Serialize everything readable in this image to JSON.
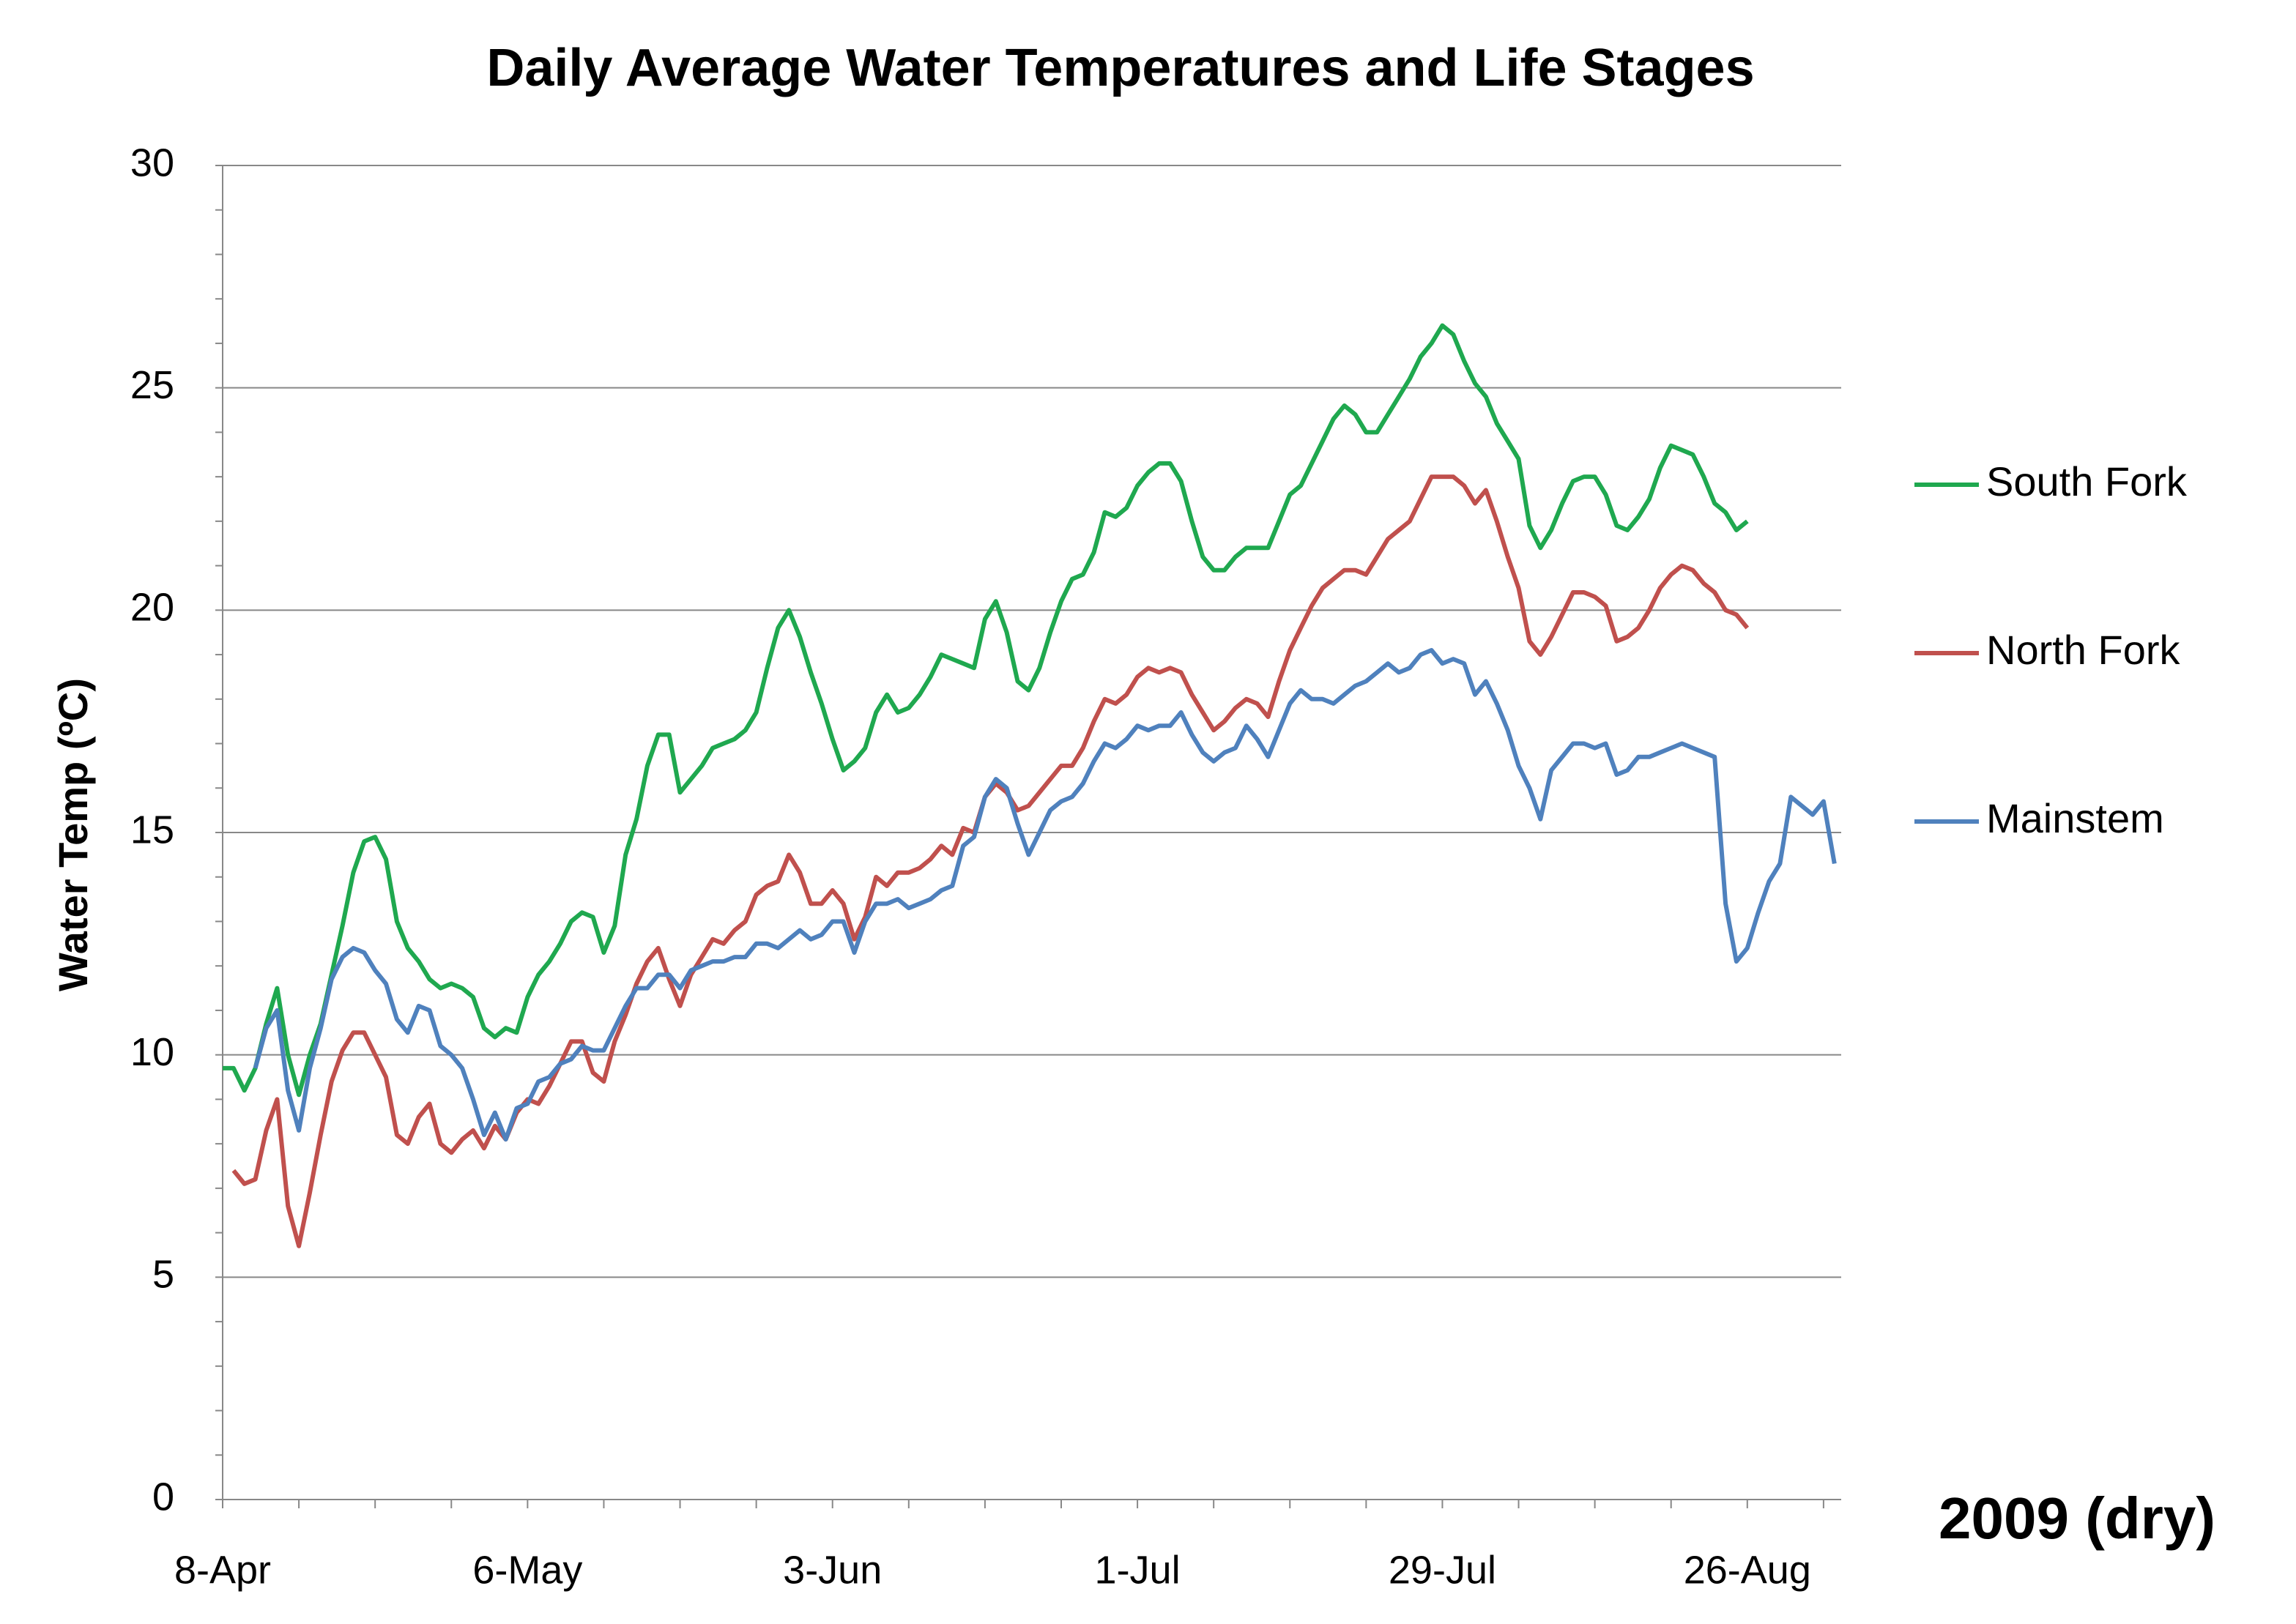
{
  "chart_data": {
    "type": "line",
    "title": "Daily Average Water Temperatures and Life Stages",
    "ylabel": "Water Temp (ºC)",
    "annotation": "2009 (dry)",
    "categories": [
      "8-Apr",
      null,
      null,
      null,
      null,
      null,
      null,
      null,
      null,
      null,
      null,
      null,
      null,
      null,
      null,
      null,
      null,
      null,
      null,
      null,
      null,
      null,
      null,
      null,
      null,
      null,
      null,
      null,
      "6-May",
      null,
      null,
      null,
      null,
      null,
      null,
      null,
      null,
      null,
      null,
      null,
      null,
      null,
      null,
      null,
      null,
      null,
      null,
      null,
      null,
      null,
      null,
      null,
      null,
      null,
      null,
      null,
      "3-Jun",
      null,
      null,
      null,
      null,
      null,
      null,
      null,
      null,
      null,
      null,
      null,
      null,
      null,
      null,
      null,
      null,
      null,
      null,
      null,
      null,
      null,
      null,
      null,
      null,
      null,
      null,
      null,
      "1-Jul",
      null,
      null,
      null,
      null,
      null,
      null,
      null,
      null,
      null,
      null,
      null,
      null,
      null,
      null,
      null,
      null,
      null,
      null,
      null,
      null,
      null,
      null,
      null,
      null,
      null,
      null,
      null,
      "29-Jul",
      null,
      null,
      null,
      null,
      null,
      null,
      null,
      null,
      null,
      null,
      null,
      null,
      null,
      null,
      null,
      null,
      null,
      null,
      null,
      null,
      null,
      null,
      null,
      null,
      null,
      null,
      null,
      "26-Aug",
      null,
      null,
      null,
      null,
      null,
      null,
      null,
      null
    ],
    "series": [
      {
        "name": "South Fork",
        "color": "#1fa84f",
        "values": [
          9.7,
          9.7,
          9.2,
          9.7,
          10.7,
          11.5,
          10.0,
          9.1,
          10.0,
          10.7,
          11.8,
          12.9,
          14.1,
          14.8,
          14.9,
          14.4,
          13.0,
          12.4,
          12.1,
          11.7,
          11.5,
          11.6,
          11.5,
          11.3,
          10.6,
          10.4,
          10.6,
          10.5,
          11.3,
          11.8,
          12.1,
          12.5,
          13.0,
          13.2,
          13.1,
          12.3,
          12.9,
          14.5,
          15.3,
          16.5,
          17.2,
          17.2,
          15.9,
          16.2,
          16.5,
          16.9,
          17.0,
          17.1,
          17.3,
          17.7,
          18.7,
          19.6,
          20.0,
          19.4,
          18.6,
          17.9,
          17.1,
          16.4,
          16.6,
          16.9,
          17.7,
          18.1,
          17.7,
          17.8,
          18.1,
          18.5,
          19.0,
          18.9,
          18.8,
          18.7,
          19.8,
          20.2,
          19.5,
          18.4,
          18.2,
          18.7,
          19.5,
          20.2,
          20.7,
          20.8,
          21.3,
          22.2,
          22.1,
          22.3,
          22.8,
          23.1,
          23.3,
          23.3,
          22.9,
          22.0,
          21.2,
          20.9,
          20.9,
          21.2,
          21.4,
          21.4,
          21.4,
          22.0,
          22.6,
          22.8,
          23.3,
          23.8,
          24.3,
          24.6,
          24.4,
          24.0,
          24.0,
          24.4,
          24.8,
          25.2,
          25.7,
          26.0,
          26.4,
          26.2,
          25.6,
          25.1,
          24.8,
          24.2,
          23.8,
          23.4,
          21.9,
          21.4,
          21.8,
          22.4,
          22.9,
          23.0,
          23.0,
          22.6,
          21.9,
          21.8,
          22.1,
          22.5,
          23.2,
          23.7,
          23.6,
          23.5,
          23.0,
          22.4,
          22.2,
          21.8,
          22.0,
          null,
          null,
          null,
          null,
          null,
          null,
          null,
          null
        ]
      },
      {
        "name": "North Fork",
        "color": "#c0504d",
        "values": [
          null,
          7.4,
          7.1,
          7.2,
          8.3,
          9.0,
          6.6,
          5.7,
          6.9,
          8.2,
          9.4,
          10.1,
          10.5,
          10.5,
          10.0,
          9.5,
          8.2,
          8.0,
          8.6,
          8.9,
          8.0,
          7.8,
          8.1,
          8.3,
          7.9,
          8.4,
          8.1,
          8.7,
          9.0,
          8.9,
          9.3,
          9.8,
          10.3,
          10.3,
          9.6,
          9.4,
          10.3,
          10.9,
          11.6,
          12.1,
          12.4,
          11.7,
          11.1,
          11.8,
          12.2,
          12.6,
          12.5,
          12.8,
          13.0,
          13.6,
          13.8,
          13.9,
          14.5,
          14.1,
          13.4,
          13.4,
          13.7,
          13.4,
          12.6,
          13.1,
          14.0,
          13.8,
          14.1,
          14.1,
          14.2,
          14.4,
          14.7,
          14.5,
          15.1,
          15.0,
          15.8,
          16.1,
          15.9,
          15.5,
          15.6,
          15.9,
          16.2,
          16.5,
          16.5,
          16.9,
          17.5,
          18.0,
          17.9,
          18.1,
          18.5,
          18.7,
          18.6,
          18.7,
          18.6,
          18.1,
          17.7,
          17.3,
          17.5,
          17.8,
          18.0,
          17.9,
          17.6,
          18.4,
          19.1,
          19.6,
          20.1,
          20.5,
          20.7,
          20.9,
          20.9,
          20.8,
          21.2,
          21.6,
          21.8,
          22.0,
          22.5,
          23.0,
          23.0,
          23.0,
          22.8,
          22.4,
          22.7,
          22.0,
          21.2,
          20.5,
          19.3,
          19.0,
          19.4,
          19.9,
          20.4,
          20.4,
          20.3,
          20.1,
          19.3,
          19.4,
          19.6,
          20.0,
          20.5,
          20.8,
          21.0,
          20.9,
          20.6,
          20.4,
          20.0,
          19.9,
          19.6,
          null,
          null,
          null,
          null,
          null,
          null,
          null,
          null
        ]
      },
      {
        "name": "Mainstem",
        "color": "#4f81bd",
        "values": [
          null,
          null,
          null,
          9.7,
          10.6,
          11.0,
          9.2,
          8.3,
          9.7,
          10.6,
          11.7,
          12.2,
          12.4,
          12.3,
          11.9,
          11.6,
          10.8,
          10.5,
          11.1,
          11.0,
          10.2,
          10.0,
          9.7,
          9.0,
          8.2,
          8.7,
          8.1,
          8.8,
          8.9,
          9.4,
          9.5,
          9.8,
          9.9,
          10.2,
          10.1,
          10.1,
          10.6,
          11.1,
          11.5,
          11.5,
          11.8,
          11.8,
          11.5,
          11.9,
          12.0,
          12.1,
          12.1,
          12.2,
          12.2,
          12.5,
          12.5,
          12.4,
          12.6,
          12.8,
          12.6,
          12.7,
          13.0,
          13.0,
          12.3,
          13.0,
          13.4,
          13.4,
          13.5,
          13.3,
          13.4,
          13.5,
          13.7,
          13.8,
          14.7,
          14.9,
          15.8,
          16.2,
          16.0,
          15.2,
          14.5,
          15.0,
          15.5,
          15.7,
          15.8,
          16.1,
          16.6,
          17.0,
          16.9,
          17.1,
          17.4,
          17.3,
          17.4,
          17.4,
          17.7,
          17.2,
          16.8,
          16.6,
          16.8,
          16.9,
          17.4,
          17.1,
          16.7,
          17.3,
          17.9,
          18.2,
          18.0,
          18.0,
          17.9,
          18.1,
          18.3,
          18.4,
          18.6,
          18.8,
          18.6,
          18.7,
          19.0,
          19.1,
          18.8,
          18.9,
          18.8,
          18.1,
          18.4,
          17.9,
          17.3,
          16.5,
          16.0,
          15.3,
          16.4,
          16.7,
          17.0,
          17.0,
          16.9,
          17.0,
          16.3,
          16.4,
          16.7,
          16.7,
          16.8,
          16.9,
          17.0,
          16.9,
          16.8,
          16.7,
          13.4,
          12.1,
          12.4,
          13.2,
          13.9,
          14.3,
          15.8,
          15.6,
          15.4,
          15.7,
          14.3
        ]
      }
    ],
    "ylim": [
      0,
      30
    ],
    "yticks": [
      0,
      5,
      10,
      15,
      20,
      25,
      30
    ],
    "grid": true,
    "legend": "right"
  }
}
